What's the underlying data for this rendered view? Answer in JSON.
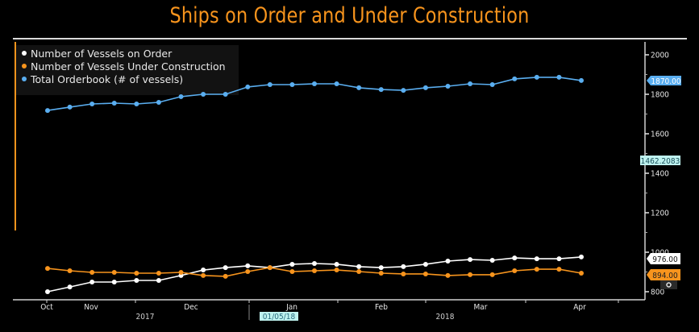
{
  "chart_data": {
    "type": "line",
    "title": "Ships on Order and Under Construction",
    "xlabel": "",
    "ylabel": "",
    "ylim": [
      800,
      2050
    ],
    "y_ticks": [
      800,
      1000,
      1200,
      1400,
      1600,
      1800,
      2000
    ],
    "y_tick_labels": [
      "800",
      "1000",
      "1200",
      "1400",
      "1600",
      "1800",
      "2000"
    ],
    "x_month_labels": [
      "Oct",
      "Nov",
      "Dec",
      "Jan",
      "Feb",
      "Mar",
      "Apr"
    ],
    "x_year_labels": [
      "2017",
      "2018"
    ],
    "cursor_date_label": "01/05/18",
    "cursor_value_label": "1462.2083",
    "legend_position": "top-left",
    "grid": false,
    "series": [
      {
        "name": "Number of Vessels on Order",
        "color": "#ffffff",
        "last_value_label": "976.00",
        "values": [
          800,
          824,
          849,
          849,
          857,
          857,
          882,
          910,
          922,
          931,
          922,
          939,
          943,
          939,
          927,
          922,
          927,
          939,
          955,
          963,
          959,
          971,
          967,
          967,
          976
        ]
      },
      {
        "name": "Number of Vessels Under Construction",
        "color": "#f7941d",
        "last_value_label": "894.00",
        "values": [
          918,
          906,
          898,
          898,
          894,
          894,
          898,
          882,
          878,
          902,
          922,
          902,
          906,
          910,
          902,
          894,
          890,
          890,
          882,
          886,
          886,
          906,
          914,
          914,
          894
        ]
      },
      {
        "name": "Total Orderbook (# of vessels)",
        "color": "#5aaef0",
        "last_value_label": "1870.00",
        "values": [
          1718,
          1735,
          1751,
          1755,
          1751,
          1759,
          1788,
          1800,
          1800,
          1837,
          1849,
          1849,
          1853,
          1853,
          1833,
          1824,
          1820,
          1833,
          1841,
          1853,
          1849,
          1878,
          1886,
          1886,
          1870
        ]
      }
    ]
  },
  "colors": {
    "title": "#f7941d",
    "axis": "#cfcfcf",
    "cursor_badge": "#bff3f0"
  }
}
